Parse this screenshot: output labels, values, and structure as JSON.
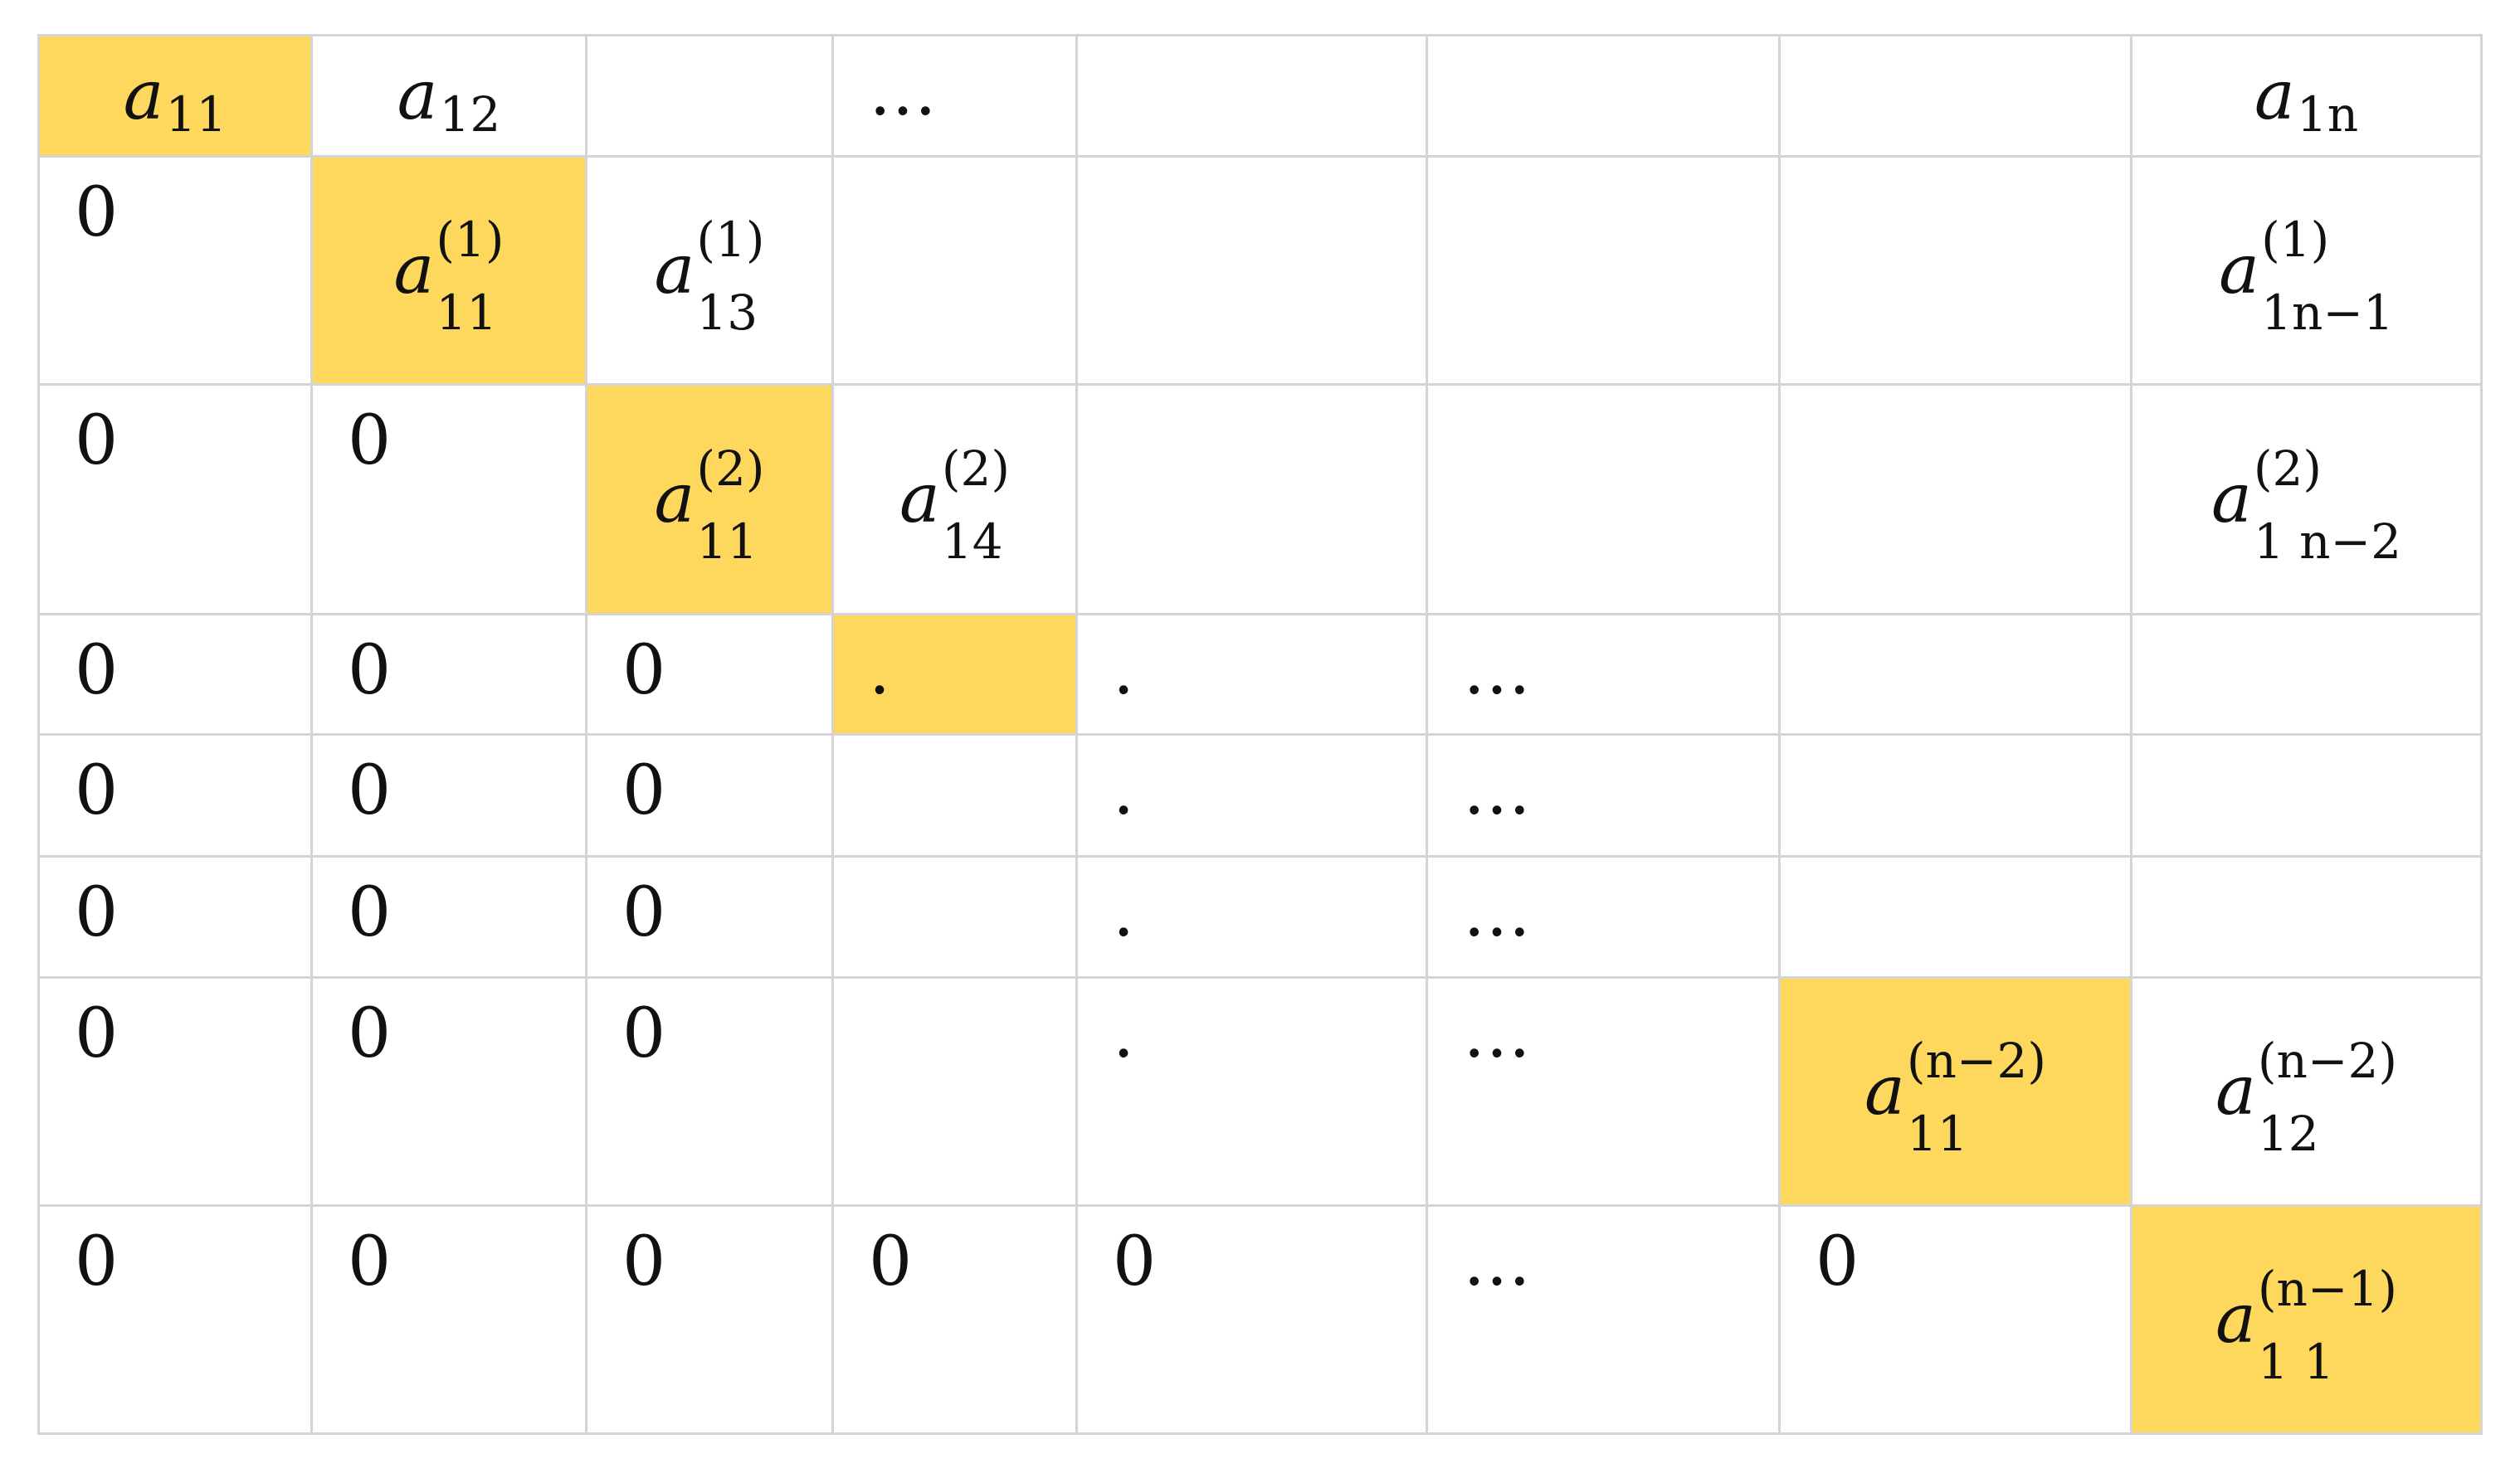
{
  "table": {
    "rows": [
      [
        {
          "base": "a",
          "sub": "11",
          "highlight": true
        },
        {
          "base": "a",
          "sub": "12"
        },
        null,
        {
          "text": "…"
        },
        null,
        null,
        null,
        {
          "base": "a",
          "sub": "1n"
        }
      ],
      [
        {
          "text": "0"
        },
        {
          "base": "a",
          "sub": "11",
          "sup": "(1)",
          "highlight": true
        },
        {
          "base": "a",
          "sub": "13",
          "sup": "(1)"
        },
        null,
        null,
        null,
        null,
        {
          "base": "a",
          "sub": "1n−1",
          "sup": "(1)"
        }
      ],
      [
        {
          "text": "0"
        },
        {
          "text": "0"
        },
        {
          "base": "a",
          "sub": "11",
          "sup": "(2)",
          "highlight": true
        },
        {
          "base": "a",
          "sub": "14",
          "sup": "(2)"
        },
        null,
        null,
        null,
        {
          "base": "a",
          "sub": "1 n−2",
          "sup": "(2)"
        }
      ],
      [
        {
          "text": "0"
        },
        {
          "text": "0"
        },
        {
          "text": "0"
        },
        {
          "text": ".",
          "highlight": true
        },
        {
          "text": "."
        },
        {
          "text": "…"
        },
        null,
        null
      ],
      [
        {
          "text": "0"
        },
        {
          "text": "0"
        },
        {
          "text": "0"
        },
        null,
        {
          "text": "."
        },
        {
          "text": "…"
        },
        null,
        null
      ],
      [
        {
          "text": "0"
        },
        {
          "text": "0"
        },
        {
          "text": "0"
        },
        null,
        {
          "text": "."
        },
        {
          "text": "…"
        },
        null,
        null
      ],
      [
        {
          "text": "0"
        },
        {
          "text": "0"
        },
        {
          "text": "0"
        },
        null,
        {
          "text": "."
        },
        {
          "text": "…"
        },
        {
          "base": "a",
          "sub": "11",
          "sup": "(n−2)",
          "highlight": true
        },
        {
          "base": "a",
          "sub": "12",
          "sup": "(n−2)"
        }
      ],
      [
        {
          "text": "0"
        },
        {
          "text": "0"
        },
        {
          "text": "0"
        },
        {
          "text": "0"
        },
        {
          "text": "0"
        },
        {
          "text": "…"
        },
        {
          "text": "0"
        },
        {
          "base": "a",
          "sub": "1 1",
          "sup": "(n−1)",
          "highlight": true
        }
      ]
    ]
  }
}
